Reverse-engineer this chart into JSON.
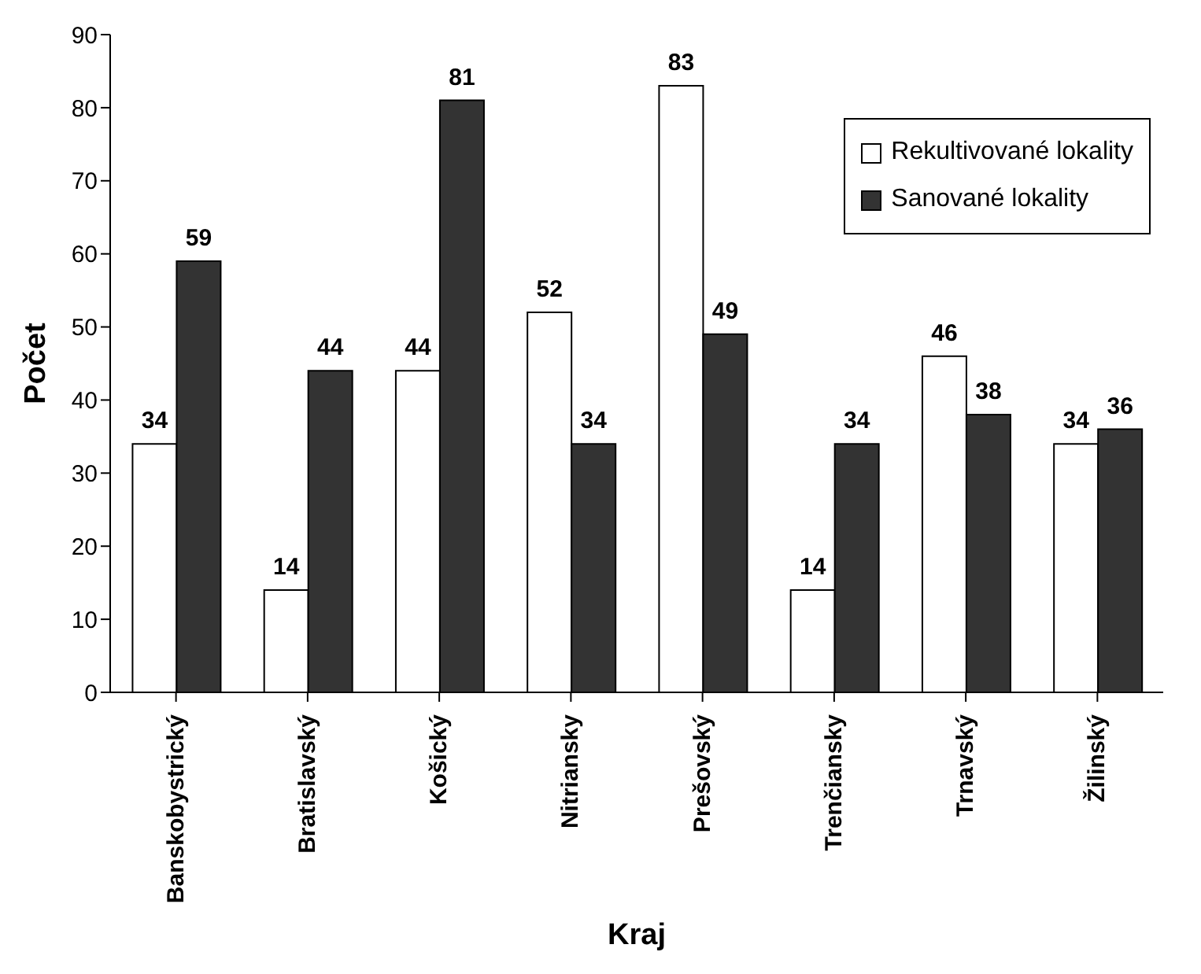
{
  "chart_data": {
    "type": "bar",
    "xlabel": "Kraj",
    "ylabel": "Počet",
    "categories": [
      "Banskobystrický",
      "Bratislavský",
      "Košický",
      "Nitriansky",
      "Prešovský",
      "Trenčiansky",
      "Trnavský",
      "Žilinský"
    ],
    "series": [
      {
        "name": "Rekultivované lokality",
        "color": "#ffffff",
        "values": [
          34,
          14,
          44,
          52,
          83,
          14,
          46,
          34
        ]
      },
      {
        "name": "Sanované lokality",
        "color": "#333333",
        "values": [
          59,
          44,
          81,
          34,
          49,
          34,
          38,
          36
        ]
      }
    ],
    "ylim": [
      0,
      90
    ],
    "yticks": [
      0,
      10,
      20,
      30,
      40,
      50,
      60,
      70,
      80,
      90
    ],
    "grid": false,
    "legend": "top right",
    "data_labels": true
  }
}
